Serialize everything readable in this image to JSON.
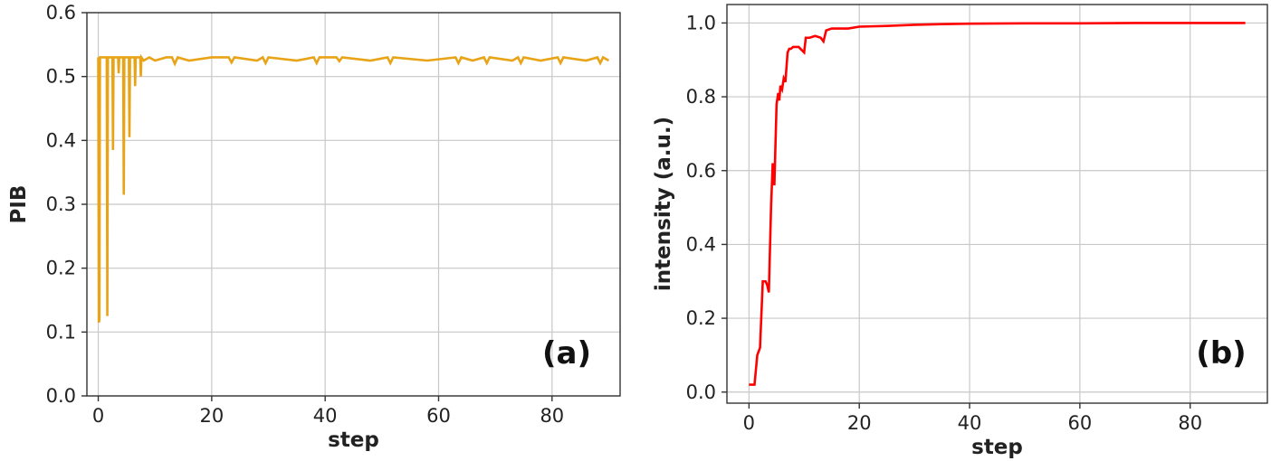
{
  "chart_data": [
    {
      "type": "line",
      "panel_label": "(a)",
      "xlabel": "step",
      "ylabel": "PIB",
      "xlim": [
        -2,
        92
      ],
      "ylim": [
        0,
        0.6
      ],
      "xticks": [
        0,
        20,
        40,
        60,
        80
      ],
      "yticks": [
        0.0,
        0.1,
        0.2,
        0.3,
        0.4,
        0.5,
        0.6
      ],
      "xtick_labels": [
        "0",
        "20",
        "40",
        "60",
        "80"
      ],
      "ytick_labels": [
        "0.0",
        "0.1",
        "0.2",
        "0.3",
        "0.4",
        "0.5",
        "0.6"
      ],
      "grid": true,
      "color": "#E8A317",
      "series": [
        {
          "x": [
            0,
            0.1,
            0.2,
            0.3,
            1.0,
            1.5,
            1.6,
            1.7,
            2.0,
            2.5,
            2.6,
            2.7,
            3.0,
            3.5,
            3.6,
            3.7,
            4.0,
            4.4,
            4.5,
            4.6,
            5.0,
            5.4,
            5.5,
            5.6,
            6.0,
            6.4,
            6.5,
            6.6,
            7.0,
            7.4,
            7.5,
            7.6,
            8.0,
            9.0,
            10.0,
            12.0,
            13.0,
            13.5,
            14.0,
            16.0,
            20.0,
            23.0,
            23.5,
            24.0,
            28.0,
            29.0,
            29.5,
            30.0,
            35.0,
            38.0,
            38.5,
            39.0,
            42.0,
            42.5,
            43.0,
            48.0,
            51.0,
            51.5,
            52.0,
            58.0,
            63.0,
            63.5,
            64.0,
            66.0,
            68.0,
            68.5,
            69.0,
            73.0,
            74.0,
            74.5,
            75.0,
            78.0,
            81.0,
            81.5,
            82.0,
            86.0,
            88.0,
            88.5,
            89.0,
            90.0
          ],
          "y": [
            0.53,
            0.115,
            0.12,
            0.53,
            0.53,
            0.53,
            0.125,
            0.53,
            0.53,
            0.53,
            0.385,
            0.53,
            0.53,
            0.53,
            0.505,
            0.53,
            0.53,
            0.53,
            0.315,
            0.53,
            0.53,
            0.53,
            0.405,
            0.53,
            0.53,
            0.53,
            0.485,
            0.53,
            0.53,
            0.53,
            0.5,
            0.53,
            0.525,
            0.53,
            0.525,
            0.53,
            0.53,
            0.52,
            0.53,
            0.525,
            0.53,
            0.53,
            0.522,
            0.53,
            0.525,
            0.53,
            0.521,
            0.53,
            0.525,
            0.53,
            0.521,
            0.53,
            0.53,
            0.524,
            0.53,
            0.525,
            0.53,
            0.521,
            0.53,
            0.525,
            0.53,
            0.521,
            0.53,
            0.525,
            0.53,
            0.521,
            0.53,
            0.525,
            0.53,
            0.521,
            0.53,
            0.525,
            0.53,
            0.521,
            0.53,
            0.525,
            0.53,
            0.521,
            0.53,
            0.525
          ]
        }
      ]
    },
    {
      "type": "line",
      "panel_label": "(b)",
      "xlabel": "step",
      "ylabel": "intensity (a.u.)",
      "xlim": [
        -4,
        94
      ],
      "ylim": [
        -0.03,
        1.05
      ],
      "xticks": [
        0,
        20,
        40,
        60,
        80
      ],
      "yticks": [
        0.0,
        0.2,
        0.4,
        0.6,
        0.8,
        1.0
      ],
      "xtick_labels": [
        "0",
        "20",
        "40",
        "60",
        "80"
      ],
      "ytick_labels": [
        "0.0",
        "0.2",
        "0.4",
        "0.6",
        "0.8",
        "1.0"
      ],
      "grid": true,
      "color": "#FF0000",
      "series": [
        {
          "x": [
            0,
            1.0,
            1.5,
            2.0,
            2.5,
            3.0,
            3.3,
            3.6,
            4.0,
            4.3,
            4.6,
            5.0,
            5.3,
            5.5,
            5.7,
            6.0,
            6.3,
            6.6,
            7.0,
            7.3,
            7.6,
            8.0,
            9.0,
            10.0,
            10.3,
            11.0,
            12.0,
            13.0,
            13.5,
            14.0,
            15.0,
            18.0,
            20.0,
            25.0,
            30.0,
            35.0,
            40.0,
            50.0,
            60.0,
            70.0,
            80.0,
            90.0
          ],
          "y": [
            0.02,
            0.02,
            0.1,
            0.12,
            0.3,
            0.3,
            0.29,
            0.27,
            0.5,
            0.62,
            0.56,
            0.78,
            0.81,
            0.79,
            0.83,
            0.82,
            0.85,
            0.84,
            0.92,
            0.93,
            0.93,
            0.935,
            0.935,
            0.92,
            0.96,
            0.96,
            0.965,
            0.96,
            0.95,
            0.98,
            0.985,
            0.985,
            0.99,
            0.992,
            0.995,
            0.997,
            0.998,
            0.999,
            0.999,
            1.0,
            1.0,
            1.0
          ]
        }
      ]
    }
  ]
}
